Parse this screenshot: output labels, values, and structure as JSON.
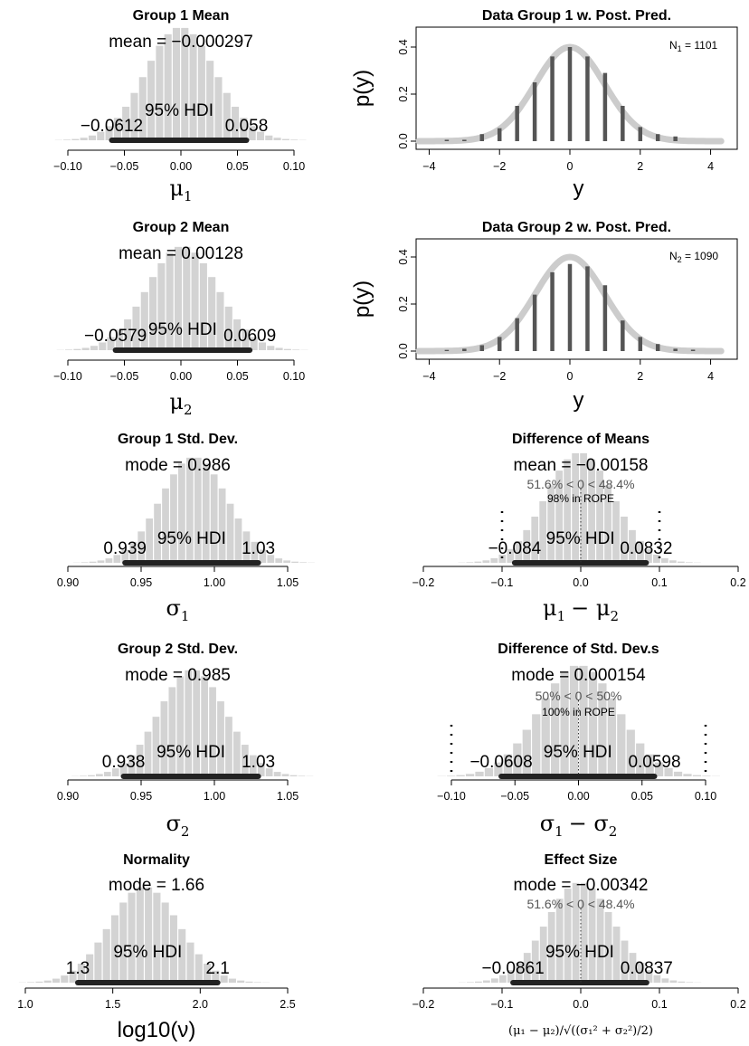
{
  "chart_data": [
    {
      "id": "mu1",
      "type": "histogram",
      "title": "Group 1 Mean",
      "stat": "mean = −0.000297",
      "hdi_label": "95% HDI",
      "hdi": [
        -0.0612,
        0.058
      ],
      "hdi_text": [
        "−0.0612",
        "0.058"
      ],
      "center": -0.0003,
      "sd": 0.031,
      "xlim": [
        -0.1,
        0.1
      ],
      "ticks": [
        -0.1,
        -0.05,
        0,
        0.05,
        0.1
      ],
      "tick_labels": [
        "−0.10",
        "−0.05",
        "0.00",
        "0.05",
        "0.10"
      ],
      "xlabel": "μ",
      "xlabel_sub": "1",
      "comp": "",
      "rope": "",
      "comp_line": null,
      "rope_bounds": null
    },
    {
      "id": "ppc1",
      "type": "posterior-predictive",
      "title": "Data Group 1 w. Post. Pred.",
      "n_label": "N",
      "n_sub": "1",
      "n_value": " = 1101",
      "xlabel": "y",
      "ylabel": "p(y)",
      "xlim": [
        -4.5,
        4.5
      ],
      "ylim": [
        0,
        0.45
      ],
      "xticks": [
        -4,
        -2,
        0,
        2,
        4
      ],
      "xtick_labels": [
        "−4",
        "−2",
        "0",
        "2",
        "4"
      ],
      "yticks": [
        0,
        0.2,
        0.4
      ],
      "ytick_labels": [
        "0.0",
        "0.2",
        "0.4"
      ],
      "bars_x": [
        -3.5,
        -3,
        -2.5,
        -2,
        -1.5,
        -1,
        -0.5,
        0,
        0.5,
        1,
        1.5,
        2,
        2.5,
        3
      ],
      "bars_y": [
        0.006,
        0.006,
        0.03,
        0.055,
        0.15,
        0.25,
        0.36,
        0.4,
        0.36,
        0.29,
        0.15,
        0.06,
        0.03,
        0.02
      ],
      "curve_sd": 0.986
    },
    {
      "id": "mu2",
      "type": "histogram",
      "title": "Group 2 Mean",
      "stat": "mean = 0.00128",
      "hdi_label": "95% HDI",
      "hdi": [
        -0.0579,
        0.0609
      ],
      "hdi_text": [
        "−0.0579",
        "0.0609"
      ],
      "center": 0.0013,
      "sd": 0.031,
      "xlim": [
        -0.1,
        0.1
      ],
      "ticks": [
        -0.1,
        -0.05,
        0,
        0.05,
        0.1
      ],
      "tick_labels": [
        "−0.10",
        "−0.05",
        "0.00",
        "0.05",
        "0.10"
      ],
      "xlabel": "μ",
      "xlabel_sub": "2",
      "comp": "",
      "rope": "",
      "comp_line": null,
      "rope_bounds": null
    },
    {
      "id": "ppc2",
      "type": "posterior-predictive",
      "title": "Data Group 2 w. Post. Pred.",
      "n_label": "N",
      "n_sub": "2",
      "n_value": " = 1090",
      "xlabel": "y",
      "ylabel": "p(y)",
      "xlim": [
        -4.5,
        4.5
      ],
      "ylim": [
        0,
        0.45
      ],
      "xticks": [
        -4,
        -2,
        0,
        2,
        4
      ],
      "xtick_labels": [
        "−4",
        "−2",
        "0",
        "2",
        "4"
      ],
      "yticks": [
        0,
        0.2,
        0.4
      ],
      "ytick_labels": [
        "0.0",
        "0.2",
        "0.4"
      ],
      "bars_x": [
        -3.5,
        -3,
        -2.5,
        -2,
        -1.5,
        -1,
        -0.5,
        0,
        0.5,
        1,
        1.5,
        2,
        2.5,
        3,
        3.5
      ],
      "bars_y": [
        0.005,
        0.01,
        0.025,
        0.06,
        0.14,
        0.24,
        0.335,
        0.37,
        0.36,
        0.28,
        0.13,
        0.06,
        0.03,
        0.01,
        0.006
      ],
      "curve_sd": 0.985
    },
    {
      "id": "sigma1",
      "type": "histogram",
      "title": "Group 1 Std. Dev.",
      "stat": "mode = 0.986",
      "hdi_label": "95% HDI",
      "hdi": [
        0.939,
        1.03
      ],
      "hdi_text": [
        "0.939",
        "1.03"
      ],
      "center": 0.986,
      "sd": 0.023,
      "xlim": [
        0.9,
        1.05
      ],
      "ticks": [
        0.9,
        0.95,
        1.0,
        1.05
      ],
      "tick_labels": [
        "0.90",
        "0.95",
        "1.00",
        "1.05"
      ],
      "xlabel": "σ",
      "xlabel_sub": "1",
      "comp": "",
      "rope": "",
      "comp_line": null,
      "rope_bounds": null
    },
    {
      "id": "diffmu",
      "type": "histogram",
      "title": "Difference of Means",
      "stat": "mean = −0.00158",
      "hdi_label": "95% HDI",
      "hdi": [
        -0.084,
        0.0832
      ],
      "hdi_text": [
        "−0.084",
        "0.0832"
      ],
      "center": -0.0016,
      "sd": 0.043,
      "xlim": [
        -0.2,
        0.2
      ],
      "ticks": [
        -0.2,
        -0.1,
        0,
        0.1,
        0.2
      ],
      "tick_labels": [
        "−0.2",
        "−0.1",
        "0.0",
        "0.1",
        "0.2"
      ],
      "xlabel": "μ",
      "xlabel_sub": "1",
      "xlabel2": "− μ",
      "xlabel2_sub": "2",
      "comp": "51.6% < 0 < 48.4%",
      "rope": "98% in ROPE",
      "comp_line": 0,
      "rope_bounds": [
        -0.1,
        0.1
      ]
    },
    {
      "id": "sigma2",
      "type": "histogram",
      "title": "Group 2 Std. Dev.",
      "stat": "mode = 0.985",
      "hdi_label": "95% HDI",
      "hdi": [
        0.938,
        1.03
      ],
      "hdi_text": [
        "0.938",
        "1.03"
      ],
      "center": 0.985,
      "sd": 0.023,
      "xlim": [
        0.9,
        1.05
      ],
      "ticks": [
        0.9,
        0.95,
        1.0,
        1.05
      ],
      "tick_labels": [
        "0.90",
        "0.95",
        "1.00",
        "1.05"
      ],
      "xlabel": "σ",
      "xlabel_sub": "2",
      "comp": "",
      "rope": "",
      "comp_line": null,
      "rope_bounds": null
    },
    {
      "id": "diffsigma",
      "type": "histogram",
      "title": "Difference of Std. Dev.s",
      "stat": "mode = 0.000154",
      "hdi_label": "95% HDI",
      "hdi": [
        -0.0608,
        0.0598
      ],
      "hdi_text": [
        "−0.0608",
        "0.0598"
      ],
      "center": 0.0002,
      "sd": 0.031,
      "xlim": [
        -0.1,
        0.1
      ],
      "ticks": [
        -0.1,
        -0.05,
        0,
        0.05,
        0.1
      ],
      "tick_labels": [
        "−0.10",
        "−0.05",
        "0.00",
        "0.05",
        "0.10"
      ],
      "xlabel": "σ",
      "xlabel_sub": "1",
      "xlabel2": "− σ",
      "xlabel2_sub": "2",
      "comp": "50% < 0 < 50%",
      "rope": "100% in ROPE",
      "comp_line": 0,
      "rope_bounds": [
        -0.1,
        0.1
      ]
    },
    {
      "id": "normality",
      "type": "histogram",
      "title": "Normality",
      "stat": "mode = 1.66",
      "hdi_label": "95% HDI",
      "hdi": [
        1.3,
        2.1
      ],
      "hdi_text": [
        "1.3",
        "2.1"
      ],
      "center": 1.68,
      "sd": 0.2,
      "xlim": [
        1.0,
        2.5
      ],
      "ticks": [
        1.0,
        1.5,
        2.0,
        2.5
      ],
      "tick_labels": [
        "1.0",
        "1.5",
        "2.0",
        "2.5"
      ],
      "xlabel": "log10(ν)",
      "xlabel_sub": "",
      "comp": "",
      "rope": "",
      "comp_line": null,
      "rope_bounds": null
    },
    {
      "id": "effsize",
      "type": "histogram",
      "title": "Effect Size",
      "stat": "mode = −0.00342",
      "hdi_label": "95% HDI",
      "hdi": [
        -0.0861,
        0.0837
      ],
      "hdi_text": [
        "−0.0861",
        "0.0837"
      ],
      "center": -0.001,
      "sd": 0.043,
      "xlim": [
        -0.2,
        0.2
      ],
      "ticks": [
        -0.2,
        -0.1,
        0,
        0.1,
        0.2
      ],
      "tick_labels": [
        "−0.2",
        "−0.1",
        "0.0",
        "0.1",
        "0.2"
      ],
      "xlabel": "(μ₁ − μ₂)/√((σ₁² + σ₂²)/2)",
      "xlabel_sub": "",
      "comp": "51.6% < 0 < 48.4%",
      "rope": "",
      "comp_line": 0,
      "rope_bounds": null
    }
  ]
}
